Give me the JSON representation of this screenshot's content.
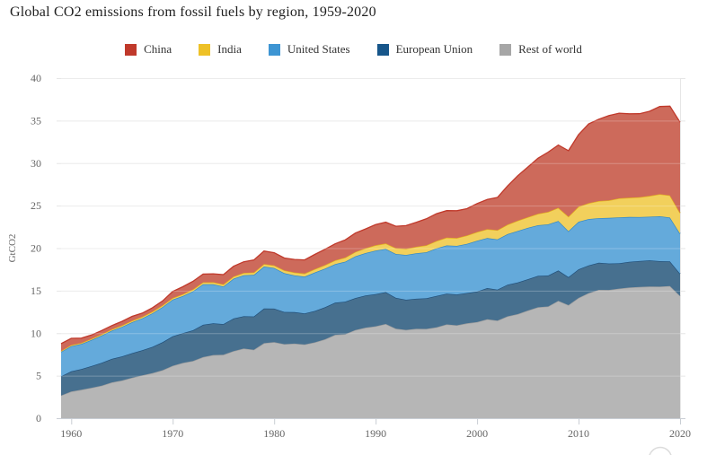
{
  "title": "Global CO2 emissions from fossil fuels by region, 1959-2020",
  "legend": {
    "items": [
      {
        "label": "China",
        "color": "#c0392b"
      },
      {
        "label": "India",
        "color": "#eec127"
      },
      {
        "label": "United States",
        "color": "#3d95d3"
      },
      {
        "label": "European Union",
        "color": "#17568a"
      },
      {
        "label": "Rest of world",
        "color": "#a6a6a6"
      }
    ]
  },
  "y_axis": {
    "title": "GtCO2",
    "ticks": [
      0,
      5,
      10,
      15,
      20,
      25,
      30,
      35,
      40
    ]
  },
  "x_axis": {
    "ticks": [
      1960,
      1970,
      1980,
      1990,
      2000,
      2010,
      2020
    ],
    "range": [
      1959,
      2020
    ]
  },
  "chart_data": {
    "type": "area",
    "stacking": "normal",
    "title": "Global CO2 emissions from fossil fuels by region, 1959-2020",
    "xlabel": "",
    "ylabel": "GtCO2",
    "ylim": [
      0,
      40
    ],
    "grid": true,
    "legend_position": "top",
    "x": [
      1959,
      1960,
      1961,
      1962,
      1963,
      1964,
      1965,
      1966,
      1967,
      1968,
      1969,
      1970,
      1971,
      1972,
      1973,
      1974,
      1975,
      1976,
      1977,
      1978,
      1979,
      1980,
      1981,
      1982,
      1983,
      1984,
      1985,
      1986,
      1987,
      1988,
      1989,
      1990,
      1991,
      1992,
      1993,
      1994,
      1995,
      1996,
      1997,
      1998,
      1999,
      2000,
      2001,
      2002,
      2003,
      2004,
      2005,
      2006,
      2007,
      2008,
      2009,
      2010,
      2011,
      2012,
      2013,
      2014,
      2015,
      2016,
      2017,
      2018,
      2019,
      2020
    ],
    "stack_order_bottom_to_top": [
      "Rest of world",
      "European Union",
      "United States",
      "India",
      "China"
    ],
    "series": [
      {
        "name": "China",
        "line_color": "#c0392b",
        "fill_color": "#cd6a5b",
        "values": [
          0.86,
          0.79,
          0.55,
          0.44,
          0.44,
          0.44,
          0.48,
          0.52,
          0.43,
          0.46,
          0.51,
          0.77,
          0.89,
          0.95,
          0.97,
          0.99,
          1.15,
          1.2,
          1.31,
          1.47,
          1.53,
          1.49,
          1.45,
          1.53,
          1.61,
          1.73,
          1.85,
          1.95,
          2.08,
          2.21,
          2.27,
          2.42,
          2.5,
          2.58,
          2.73,
          2.88,
          3.12,
          3.21,
          3.18,
          3.21,
          3.15,
          3.35,
          3.49,
          3.85,
          4.54,
          5.29,
          5.9,
          6.53,
          7.03,
          7.38,
          7.76,
          8.47,
          9.33,
          9.63,
          9.96,
          10.01,
          9.87,
          9.81,
          9.96,
          10.31,
          10.49,
          10.67
        ]
      },
      {
        "name": "India",
        "line_color": "#e3ae1b",
        "fill_color": "#f2d05c",
        "values": [
          0.11,
          0.12,
          0.13,
          0.14,
          0.15,
          0.15,
          0.17,
          0.17,
          0.18,
          0.19,
          0.2,
          0.19,
          0.21,
          0.22,
          0.22,
          0.23,
          0.25,
          0.26,
          0.28,
          0.28,
          0.29,
          0.3,
          0.33,
          0.35,
          0.37,
          0.39,
          0.43,
          0.45,
          0.48,
          0.52,
          0.57,
          0.62,
          0.65,
          0.69,
          0.72,
          0.76,
          0.82,
          0.87,
          0.91,
          0.93,
          0.99,
          1.03,
          1.05,
          1.08,
          1.12,
          1.21,
          1.26,
          1.35,
          1.46,
          1.55,
          1.71,
          1.78,
          1.87,
          2.02,
          2.07,
          2.24,
          2.27,
          2.35,
          2.45,
          2.59,
          2.61,
          2.44
        ]
      },
      {
        "name": "United States",
        "line_color": "#2f86c5",
        "fill_color": "#64aadb",
        "values": [
          2.88,
          2.97,
          2.96,
          3.07,
          3.2,
          3.32,
          3.47,
          3.64,
          3.76,
          3.95,
          4.14,
          4.31,
          4.36,
          4.58,
          4.77,
          4.59,
          4.42,
          4.68,
          4.82,
          4.89,
          4.94,
          4.78,
          4.56,
          4.32,
          4.31,
          4.53,
          4.53,
          4.53,
          4.7,
          4.91,
          4.98,
          5.12,
          5.07,
          5.16,
          5.27,
          5.35,
          5.41,
          5.59,
          5.67,
          5.71,
          5.78,
          5.98,
          5.88,
          5.91,
          5.95,
          6.05,
          6.03,
          5.95,
          6.02,
          5.83,
          5.4,
          5.59,
          5.45,
          5.23,
          5.37,
          5.4,
          5.26,
          5.17,
          5.13,
          5.28,
          5.15,
          4.71
        ]
      },
      {
        "name": "European Union",
        "line_color": "#1f4e79",
        "fill_color": "#47708f",
        "values": [
          2.25,
          2.38,
          2.42,
          2.55,
          2.7,
          2.77,
          2.84,
          2.89,
          2.94,
          3.09,
          3.29,
          3.47,
          3.5,
          3.62,
          3.8,
          3.74,
          3.61,
          3.84,
          3.8,
          3.92,
          4.08,
          3.94,
          3.79,
          3.7,
          3.67,
          3.69,
          3.77,
          3.78,
          3.83,
          3.76,
          3.79,
          3.79,
          3.75,
          3.62,
          3.55,
          3.54,
          3.6,
          3.69,
          3.62,
          3.63,
          3.56,
          3.59,
          3.66,
          3.64,
          3.72,
          3.73,
          3.69,
          3.69,
          3.64,
          3.56,
          3.29,
          3.37,
          3.26,
          3.2,
          3.11,
          2.98,
          3.03,
          3.04,
          3.08,
          3.0,
          2.9,
          2.6
        ]
      },
      {
        "name": "Rest of world",
        "line_color": "#9e9e9e",
        "fill_color": "#b6b6b6",
        "values": [
          2.67,
          3.13,
          3.35,
          3.58,
          3.82,
          4.21,
          4.43,
          4.76,
          5.05,
          5.3,
          5.65,
          6.16,
          6.5,
          6.72,
          7.19,
          7.43,
          7.46,
          7.89,
          8.19,
          8.05,
          8.82,
          8.95,
          8.71,
          8.77,
          8.66,
          8.92,
          9.28,
          9.8,
          9.88,
          10.37,
          10.65,
          10.81,
          11.08,
          10.53,
          10.38,
          10.51,
          10.5,
          10.69,
          11.03,
          10.92,
          11.16,
          11.3,
          11.64,
          11.48,
          11.98,
          12.24,
          12.66,
          13.05,
          13.14,
          13.81,
          13.3,
          14.14,
          14.71,
          15.09,
          15.08,
          15.24,
          15.37,
          15.44,
          15.48,
          15.47,
          15.55,
          14.39
        ]
      }
    ]
  }
}
